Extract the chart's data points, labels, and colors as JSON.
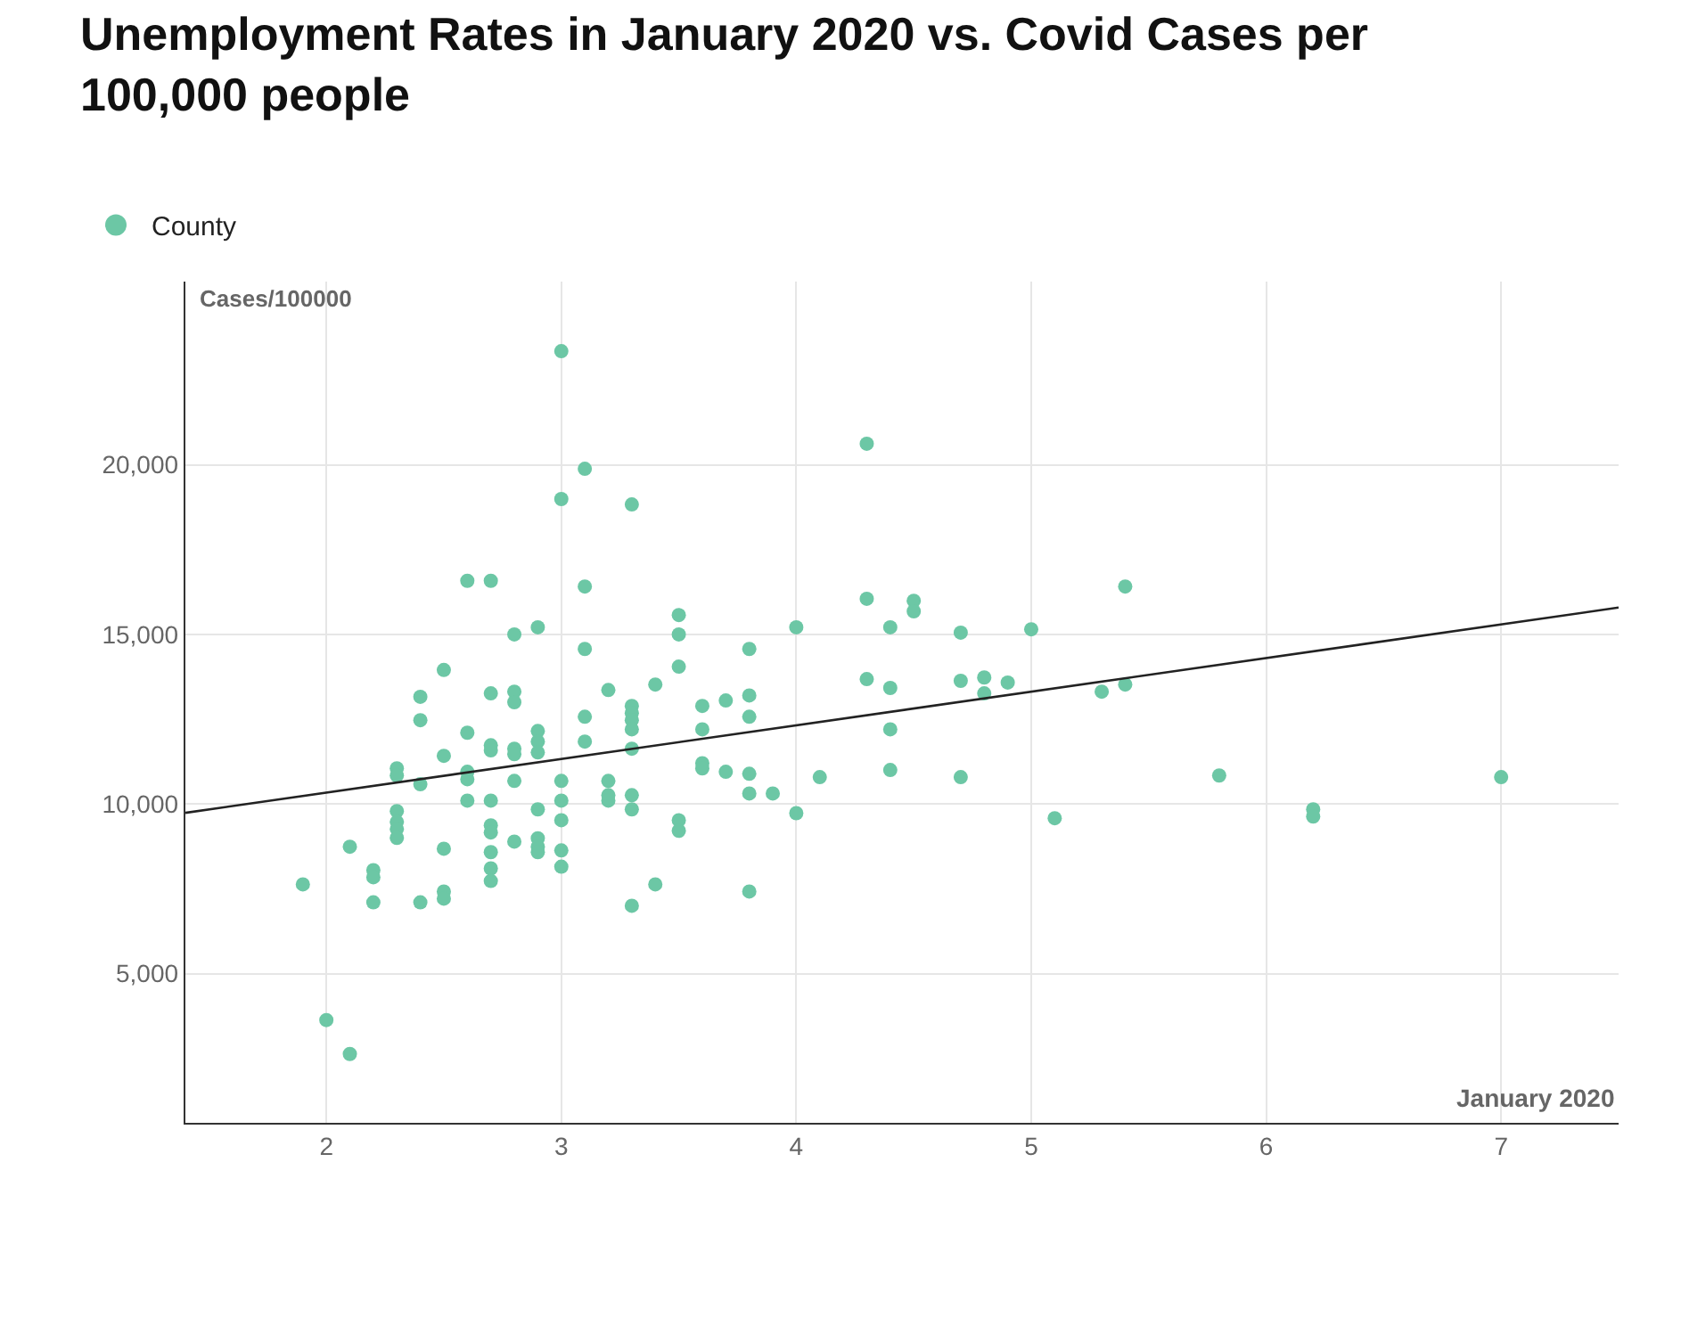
{
  "chart_data": {
    "type": "scatter",
    "title": "Unemployment Rates in January 2020 vs. Covid Cases per 100,000 people",
    "xlabel": "January 2020",
    "ylabel": "Cases/100000",
    "xlim": [
      1.4,
      7.5
    ],
    "xticks": [
      2,
      3,
      4,
      5,
      6,
      7
    ],
    "ylim": [
      600,
      25400
    ],
    "yticks": [
      {
        "value": 5000,
        "label": "5,000"
      },
      {
        "value": 10000,
        "label": "10,000"
      },
      {
        "value": 15000,
        "label": "15,000"
      },
      {
        "value": 20000,
        "label": "20,000"
      }
    ],
    "grid": true,
    "legend": "top left",
    "marker": "circle",
    "series": [
      {
        "name": "County",
        "color": "#6cc7a5",
        "x": [
          1.9,
          2.0,
          2.1,
          2.1,
          2.2,
          2.2,
          2.2,
          2.3,
          2.3,
          2.3,
          2.3,
          2.3,
          2.3,
          2.4,
          2.4,
          2.4,
          2.4,
          2.5,
          2.5,
          2.5,
          2.5,
          2.5,
          2.6,
          2.6,
          2.6,
          2.6,
          2.6,
          2.7,
          2.7,
          2.7,
          2.7,
          2.7,
          2.7,
          2.7,
          2.7,
          2.7,
          2.7,
          2.8,
          2.8,
          2.8,
          2.8,
          2.8,
          2.8,
          2.8,
          2.9,
          2.9,
          2.9,
          2.9,
          2.9,
          2.9,
          2.9,
          2.9,
          3.0,
          3.0,
          3.0,
          3.0,
          3.0,
          3.0,
          3.0,
          3.1,
          3.1,
          3.1,
          3.1,
          3.1,
          3.2,
          3.2,
          3.2,
          3.2,
          3.3,
          3.3,
          3.3,
          3.3,
          3.3,
          3.3,
          3.3,
          3.3,
          3.3,
          3.4,
          3.4,
          3.5,
          3.5,
          3.5,
          3.5,
          3.5,
          3.6,
          3.6,
          3.6,
          3.6,
          3.7,
          3.7,
          3.8,
          3.8,
          3.8,
          3.8,
          3.8,
          3.8,
          3.9,
          4.0,
          4.0,
          4.1,
          4.3,
          4.3,
          4.3,
          4.4,
          4.4,
          4.4,
          4.4,
          4.5,
          4.5,
          4.7,
          4.7,
          4.7,
          4.8,
          4.8,
          4.9,
          5.0,
          5.1,
          5.3,
          5.4,
          5.4,
          5.8,
          6.2,
          6.2,
          7.0
        ],
        "values": [
          7630,
          3630,
          2630,
          8740,
          8050,
          7840,
          7100,
          11050,
          10840,
          9790,
          9470,
          9260,
          9000,
          13160,
          12470,
          10580,
          7100,
          13950,
          11420,
          8680,
          7420,
          7210,
          16580,
          12100,
          10950,
          10730,
          10100,
          16580,
          13260,
          11730,
          11580,
          10100,
          9370,
          9160,
          8580,
          8100,
          7730,
          15000,
          13310,
          13000,
          11630,
          11470,
          10680,
          8890,
          15210,
          12150,
          11840,
          11520,
          9840,
          8990,
          8740,
          8580,
          23350,
          18990,
          10680,
          10100,
          9520,
          8630,
          8150,
          19880,
          16410,
          14570,
          12570,
          11840,
          13360,
          10680,
          10260,
          10100,
          18830,
          12890,
          12680,
          12470,
          12200,
          11630,
          10260,
          9840,
          7000,
          13520,
          7630,
          15570,
          15000,
          14050,
          9520,
          9210,
          12890,
          12200,
          11200,
          11050,
          13050,
          10950,
          14570,
          13200,
          12570,
          10890,
          10310,
          7420,
          10310,
          15210,
          9730,
          10790,
          20620,
          16050,
          13680,
          15210,
          13420,
          12200,
          11000,
          15990,
          15680,
          15050,
          13630,
          10790,
          13730,
          13260,
          13580,
          15150,
          9580,
          13310,
          16410,
          13520,
          10840,
          9840,
          9630,
          10790
        ]
      },
      {
        "type": "line",
        "color": "#222222",
        "marker": "none",
        "x": [
          1.4,
          7.5
        ],
        "values": [
          9740,
          15790
        ]
      }
    ]
  }
}
